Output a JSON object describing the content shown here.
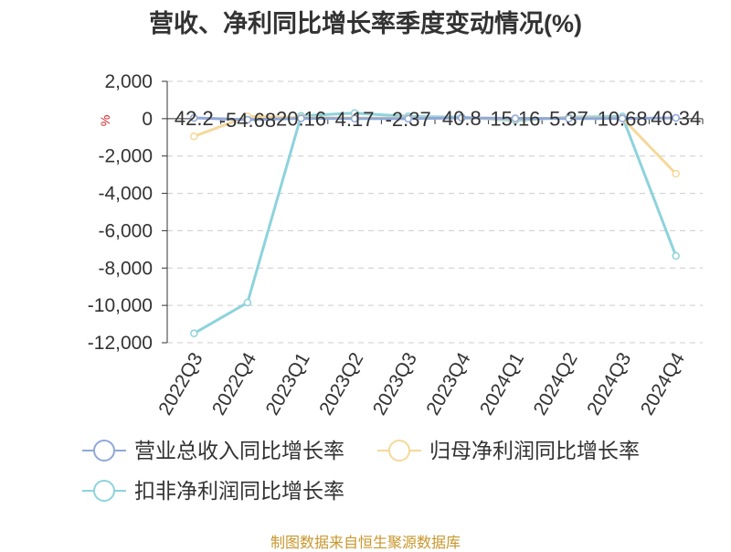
{
  "title": "营收、净利同比增长率季度变动情况(%)",
  "footer": "制图数据来自恒生聚源数据库",
  "chart_data": {
    "type": "line",
    "unit": "%",
    "categories": [
      "2022Q3",
      "2022Q4",
      "2023Q1",
      "2023Q2",
      "2023Q3",
      "2023Q4",
      "2024Q1",
      "2024Q2",
      "2024Q3",
      "2024Q4"
    ],
    "ylim": [
      -12000,
      2000
    ],
    "yticks": [
      2000,
      0,
      -2000,
      -4000,
      -6000,
      -8000,
      -10000,
      -12000
    ],
    "grid": true,
    "legend_position": "bottom",
    "data_labels": [
      "42.2",
      "-54.68",
      "20.16",
      "4.17",
      "-2.37",
      "40.8",
      "15.16",
      "5.37",
      "10.68",
      "40.34"
    ],
    "series": [
      {
        "name": "营业总收入同比增长率",
        "color": "#8fa8d8",
        "values": [
          42.2,
          -54.68,
          20.16,
          4.17,
          -2.37,
          40.8,
          15.16,
          5.37,
          10.68,
          40.34
        ]
      },
      {
        "name": "归母净利润同比增长率",
        "color": "#f5d89a",
        "values": [
          -950,
          120,
          60,
          40,
          30,
          30,
          -20,
          40,
          30,
          -2950
        ]
      },
      {
        "name": "扣非净利润同比增长率",
        "color": "#8dd3dc",
        "values": [
          -11500,
          -9850,
          150,
          300,
          120,
          80,
          -100,
          80,
          120,
          -7350
        ]
      }
    ]
  }
}
